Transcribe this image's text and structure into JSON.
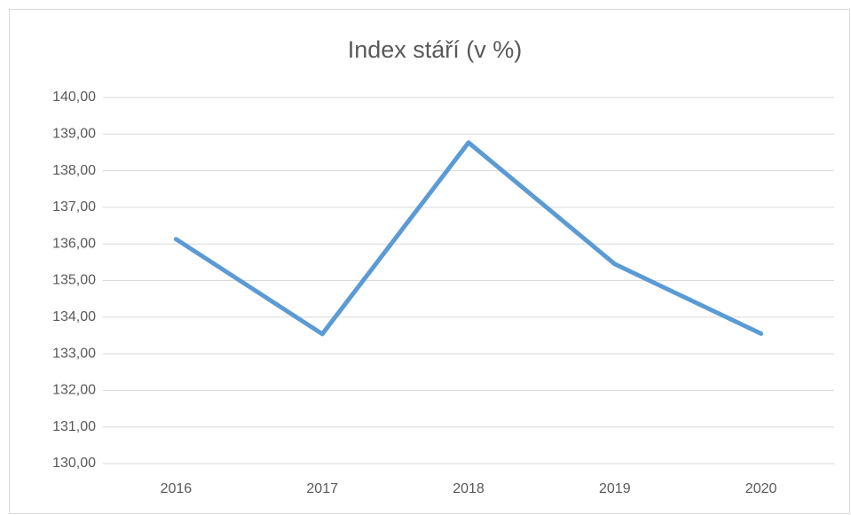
{
  "chart_data": {
    "type": "line",
    "title": "Index stáří (v %)",
    "categories": [
      "2016",
      "2017",
      "2018",
      "2019",
      "2020"
    ],
    "series": [
      {
        "color": "#5b9bd5",
        "values": [
          136.13,
          133.54,
          138.77,
          135.45,
          133.55
        ]
      }
    ],
    "ylim": [
      130,
      140
    ],
    "yticks": [
      {
        "value": 130,
        "label": "130,00"
      },
      {
        "value": 131,
        "label": "131,00"
      },
      {
        "value": 132,
        "label": "132,00"
      },
      {
        "value": 133,
        "label": "133,00"
      },
      {
        "value": 134,
        "label": "134,00"
      },
      {
        "value": 135,
        "label": "135,00"
      },
      {
        "value": 136,
        "label": "136,00"
      },
      {
        "value": 137,
        "label": "137,00"
      },
      {
        "value": 138,
        "label": "138,00"
      },
      {
        "value": 139,
        "label": "139,00"
      },
      {
        "value": 140,
        "label": "140,00"
      }
    ],
    "grid": true
  }
}
